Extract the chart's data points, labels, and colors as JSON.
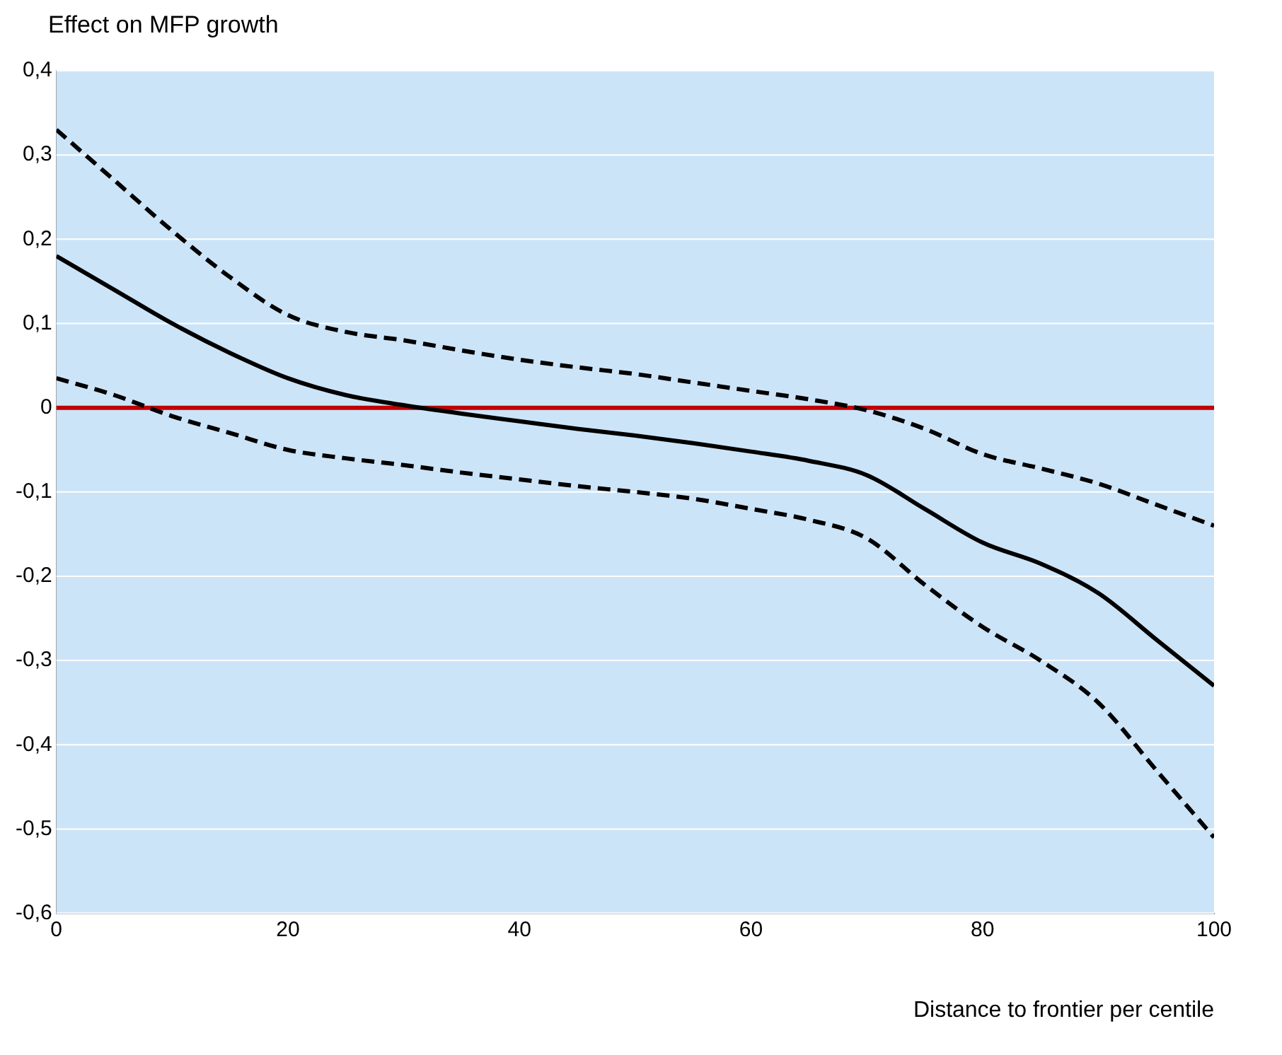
{
  "chart_data": {
    "type": "line",
    "xlabel": "Distance to frontier per centile",
    "ylabel": "Effect on MFP growth",
    "x": [
      0,
      5,
      10,
      15,
      20,
      25,
      30,
      35,
      40,
      45,
      50,
      55,
      60,
      65,
      70,
      75,
      80,
      85,
      90,
      95,
      100
    ],
    "series": [
      {
        "color": "#000000",
        "line_style": "solid",
        "values": [
          0.18,
          0.14,
          0.1,
          0.065,
          0.035,
          0.015,
          0.003,
          -0.007,
          -0.016,
          -0.025,
          -0.033,
          -0.042,
          -0.052,
          -0.063,
          -0.08,
          -0.12,
          -0.16,
          -0.185,
          -0.22,
          -0.275,
          -0.33
        ]
      },
      {
        "color": "#000000",
        "line_style": "dashed",
        "values": [
          0.33,
          0.27,
          0.21,
          0.155,
          0.11,
          0.09,
          0.08,
          0.068,
          0.057,
          0.048,
          0.04,
          0.03,
          0.02,
          0.01,
          -0.003,
          -0.025,
          -0.055,
          -0.072,
          -0.09,
          -0.115,
          -0.14
        ]
      },
      {
        "color": "#000000",
        "line_style": "dashed",
        "values": [
          0.035,
          0.015,
          -0.01,
          -0.03,
          -0.05,
          -0.06,
          -0.068,
          -0.077,
          -0.085,
          -0.093,
          -0.1,
          -0.108,
          -0.12,
          -0.133,
          -0.155,
          -0.21,
          -0.26,
          -0.3,
          -0.35,
          -0.43,
          -0.51
        ]
      }
    ],
    "xlim": [
      0,
      100
    ],
    "xticks": [
      0,
      20,
      40,
      60,
      80,
      100
    ],
    "ylim": [
      -0.6,
      0.4
    ],
    "yticks": [
      {
        "value": -0.6,
        "label": "-0,6"
      },
      {
        "value": -0.5,
        "label": "-0,5"
      },
      {
        "value": -0.4,
        "label": "-0,4"
      },
      {
        "value": -0.3,
        "label": "-0,3"
      },
      {
        "value": -0.2,
        "label": "-0,2"
      },
      {
        "value": -0.1,
        "label": "-0,1"
      },
      0,
      {
        "value": 0.1,
        "label": "0,1"
      },
      {
        "value": 0.2,
        "label": "0,2"
      },
      {
        "value": 0.3,
        "label": "0,3"
      },
      {
        "value": 0.4,
        "label": "0,4"
      }
    ],
    "ref_lines": [
      {
        "axis": "y",
        "value": 0,
        "color": "#c00000"
      }
    ],
    "grid": "y",
    "marker": "none"
  }
}
